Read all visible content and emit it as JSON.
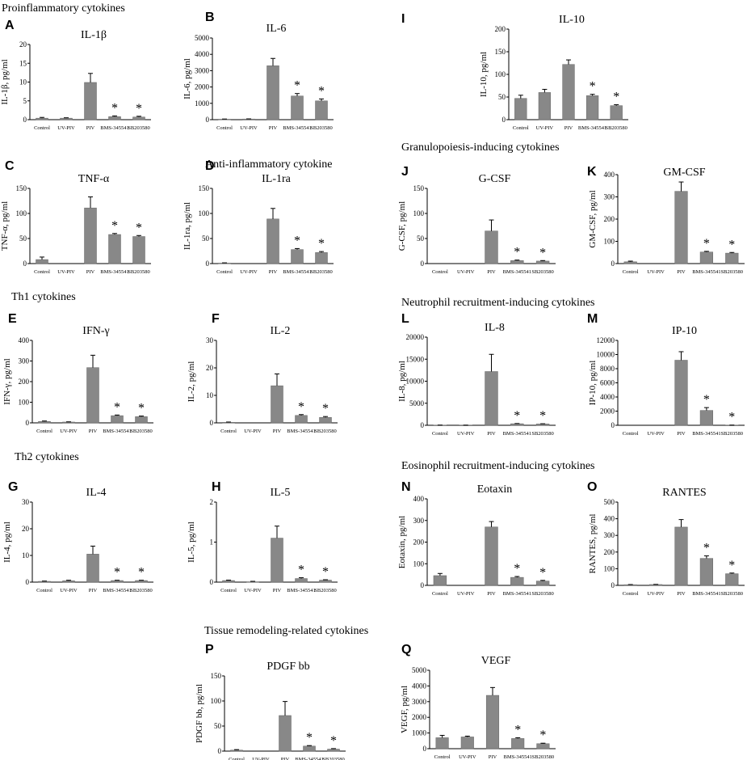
{
  "section_labels": [
    "Proinflammatory cytokines",
    "Anti-inflammatory cytokine",
    "Th1 cytokines",
    "Th2 cytokines",
    "Granulopoiesis-inducing cytokines",
    "Neutrophil recruitment-inducing cytokines",
    "Eosinophil recruitment-inducing cytokines",
    "Tissue remodeling-related cytokines"
  ],
  "chart_data": [
    {
      "id": "A",
      "type": "bar",
      "title": "IL-1β",
      "ylabel": "IL-1β, pg/ml",
      "categories": [
        "Control",
        "UV-PIV",
        "PIV",
        "BMS-345541",
        "SB203580"
      ],
      "values": [
        0.4,
        0.4,
        9.9,
        0.8,
        0.7
      ],
      "errors": [
        0.2,
        0.1,
        2.4,
        0.2,
        0.2
      ],
      "significant": [
        false,
        false,
        false,
        true,
        true
      ],
      "ylim": [
        0,
        20
      ],
      "yticks": [
        0,
        5,
        10,
        15,
        20
      ]
    },
    {
      "id": "B",
      "type": "bar",
      "title": "IL-6",
      "ylabel": "IL-6, pg/ml",
      "categories": [
        "Control",
        "UV-PIV",
        "PIV",
        "BMS-345541",
        "SB203580"
      ],
      "values": [
        30,
        40,
        3300,
        1450,
        1150
      ],
      "errors": [
        10,
        10,
        450,
        150,
        120
      ],
      "significant": [
        false,
        false,
        false,
        true,
        true
      ],
      "ylim": [
        0,
        5000
      ],
      "yticks": [
        0,
        1000,
        2000,
        3000,
        4000,
        5000
      ]
    },
    {
      "id": "I",
      "type": "bar",
      "title": "IL-10",
      "ylabel": "IL-10, pg/ml",
      "categories": [
        "Control",
        "UV-PIV",
        "PIV",
        "BMS-345541",
        "SB203580"
      ],
      "values": [
        47,
        60,
        122,
        53,
        31
      ],
      "errors": [
        7,
        7,
        10,
        3,
        2
      ],
      "significant": [
        false,
        false,
        false,
        true,
        true
      ],
      "ylim": [
        0,
        200
      ],
      "yticks": [
        0,
        50,
        100,
        150,
        200
      ]
    },
    {
      "id": "C",
      "type": "bar",
      "title": "TNF-α",
      "ylabel": "TNF-α, pg/ml",
      "categories": [
        "Control",
        "UV-PIV",
        "PIV",
        "BMS-345541",
        "SB203580"
      ],
      "values": [
        8,
        0,
        111,
        58,
        54
      ],
      "errors": [
        5,
        0,
        22,
        2,
        2
      ],
      "significant": [
        false,
        false,
        false,
        true,
        true
      ],
      "ylim": [
        0,
        150
      ],
      "yticks": [
        0,
        50,
        100,
        150
      ]
    },
    {
      "id": "D",
      "type": "bar",
      "title": "IL-1ra",
      "ylabel": "IL-1ra, pg/ml",
      "categories": [
        "Control",
        "UV-PIV",
        "PIV",
        "BMS-345541",
        "SB203580"
      ],
      "values": [
        1,
        0,
        89,
        28,
        22
      ],
      "errors": [
        0.5,
        0,
        21,
        2,
        2
      ],
      "significant": [
        false,
        false,
        false,
        true,
        true
      ],
      "ylim": [
        0,
        150
      ],
      "yticks": [
        0,
        50,
        100,
        150
      ]
    },
    {
      "id": "J",
      "type": "bar",
      "title": "G-CSF",
      "ylabel": "G-CSF, pg/ml",
      "categories": [
        "Control",
        "UV-PIV",
        "PIV",
        "BMS-345541",
        "SB203580"
      ],
      "values": [
        0,
        0,
        65,
        6,
        5
      ],
      "errors": [
        0,
        0,
        22,
        1,
        1
      ],
      "significant": [
        false,
        false,
        false,
        true,
        true
      ],
      "ylim": [
        0,
        150
      ],
      "yticks": [
        0,
        50,
        100,
        150
      ]
    },
    {
      "id": "K",
      "type": "bar",
      "title": "GM-CSF",
      "ylabel": "GM-CSF, pg/ml",
      "categories": [
        "Control",
        "UV-PIV",
        "PIV",
        "BMS-345541",
        "SB203580"
      ],
      "values": [
        8,
        0,
        325,
        52,
        47
      ],
      "errors": [
        3,
        0,
        42,
        3,
        3
      ],
      "significant": [
        false,
        false,
        false,
        true,
        true
      ],
      "ylim": [
        0,
        400
      ],
      "yticks": [
        0,
        100,
        200,
        300,
        400
      ]
    },
    {
      "id": "E",
      "type": "bar",
      "title": "IFN-γ",
      "ylabel": "IFN-γ, pg/ml",
      "categories": [
        "Control",
        "UV-PIV",
        "PIV",
        "BMS-345541",
        "SB203580"
      ],
      "values": [
        7,
        4,
        268,
        35,
        30
      ],
      "errors": [
        2,
        1,
        60,
        3,
        3
      ],
      "significant": [
        false,
        false,
        false,
        true,
        true
      ],
      "ylim": [
        0,
        400
      ],
      "yticks": [
        0,
        100,
        200,
        300,
        400
      ]
    },
    {
      "id": "F",
      "type": "bar",
      "title": "IL-2",
      "ylabel": "IL-2, pg/ml",
      "categories": [
        "Control",
        "UV-PIV",
        "PIV",
        "BMS-345541",
        "SB203580"
      ],
      "values": [
        0.2,
        0,
        13.5,
        2.7,
        2
      ],
      "errors": [
        0.1,
        0,
        4.3,
        0.3,
        0.3
      ],
      "significant": [
        false,
        false,
        false,
        true,
        true
      ],
      "ylim": [
        0,
        30
      ],
      "yticks": [
        0,
        10,
        20,
        30
      ]
    },
    {
      "id": "L",
      "type": "bar",
      "title": "IL-8",
      "ylabel": "IL-8, pg/ml",
      "categories": [
        "Control",
        "UV-PIV",
        "PIV",
        "BMS-345541",
        "SB203580"
      ],
      "values": [
        40,
        30,
        12200,
        350,
        300
      ],
      "errors": [
        10,
        10,
        3900,
        50,
        50
      ],
      "significant": [
        false,
        false,
        false,
        true,
        true
      ],
      "ylim": [
        0,
        20000
      ],
      "yticks": [
        0,
        5000,
        10000,
        15000,
        20000
      ]
    },
    {
      "id": "M",
      "type": "bar",
      "title": "IP-10",
      "ylabel": "IP-10, pg/ml",
      "categories": [
        "Control",
        "UV-PIV",
        "PIV",
        "BMS-345541",
        "SB203580"
      ],
      "values": [
        0,
        0,
        9200,
        2100,
        20
      ],
      "errors": [
        0,
        0,
        1200,
        400,
        10
      ],
      "significant": [
        false,
        false,
        false,
        true,
        true
      ],
      "ylim": [
        0,
        12000
      ],
      "yticks": [
        0,
        2000,
        4000,
        6000,
        8000,
        10000,
        12000
      ]
    },
    {
      "id": "G",
      "type": "bar",
      "title": "IL-4",
      "ylabel": "IL-4, pg/ml",
      "categories": [
        "Control",
        "UV-PIV",
        "PIV",
        "BMS-345541",
        "SB203580"
      ],
      "values": [
        0.3,
        0.5,
        10.5,
        0.6,
        0.6
      ],
      "errors": [
        0.1,
        0.2,
        3,
        0.1,
        0.1
      ],
      "significant": [
        false,
        false,
        false,
        true,
        true
      ],
      "ylim": [
        0,
        30
      ],
      "yticks": [
        0,
        10,
        20,
        30
      ]
    },
    {
      "id": "H",
      "type": "bar",
      "title": "IL-5",
      "ylabel": "IL-5, pg/ml",
      "categories": [
        "Control",
        "UV-PIV",
        "PIV",
        "BMS-345541",
        "SB203580"
      ],
      "values": [
        0.04,
        0.01,
        1.1,
        0.09,
        0.05
      ],
      "errors": [
        0.01,
        0.01,
        0.3,
        0.02,
        0.01
      ],
      "significant": [
        false,
        false,
        false,
        true,
        true
      ],
      "ylim": [
        0,
        2
      ],
      "yticks": [
        0,
        1,
        2
      ]
    },
    {
      "id": "N",
      "type": "bar",
      "title": "Eotaxin",
      "ylabel": "Eotaxin, pg/ml",
      "categories": [
        "Control",
        "UV-PIV",
        "PIV",
        "BMS-345541",
        "SB203580"
      ],
      "values": [
        45,
        0,
        270,
        37,
        20
      ],
      "errors": [
        10,
        0,
        25,
        4,
        3
      ],
      "significant": [
        false,
        false,
        false,
        true,
        true
      ],
      "ylim": [
        0,
        400
      ],
      "yticks": [
        0,
        100,
        200,
        300,
        400
      ]
    },
    {
      "id": "O",
      "type": "bar",
      "title": "RANTES",
      "ylabel": "RANTES, pg/ml",
      "categories": [
        "Control",
        "UV-PIV",
        "PIV",
        "BMS-345541",
        "SB203580"
      ],
      "values": [
        4,
        5,
        350,
        162,
        70
      ],
      "errors": [
        1,
        1,
        45,
        15,
        4
      ],
      "significant": [
        false,
        false,
        false,
        true,
        true
      ],
      "ylim": [
        0,
        500
      ],
      "yticks": [
        0,
        100,
        200,
        300,
        400,
        500
      ]
    },
    {
      "id": "P",
      "type": "bar",
      "title": "PDGF bb",
      "ylabel": "PDGF bb, pg/ml",
      "categories": [
        "Control",
        "UV-PIV",
        "PIV",
        "BMS-345541",
        "SB203580"
      ],
      "values": [
        2,
        0,
        71,
        10,
        4
      ],
      "errors": [
        1,
        0,
        28,
        1,
        1
      ],
      "significant": [
        false,
        false,
        false,
        true,
        true
      ],
      "ylim": [
        0,
        150
      ],
      "yticks": [
        0,
        50,
        100,
        150
      ]
    },
    {
      "id": "Q",
      "type": "bar",
      "title": "VEGF",
      "ylabel": "VEGF, pg/ml",
      "categories": [
        "Control",
        "UV-PIV",
        "PIV",
        "BMS-345541",
        "SB203580"
      ],
      "values": [
        700,
        750,
        3400,
        650,
        320
      ],
      "errors": [
        150,
        50,
        500,
        50,
        30
      ],
      "significant": [
        false,
        false,
        false,
        true,
        true
      ],
      "ylim": [
        0,
        5000
      ],
      "yticks": [
        0,
        1000,
        2000,
        3000,
        4000,
        5000
      ]
    }
  ]
}
